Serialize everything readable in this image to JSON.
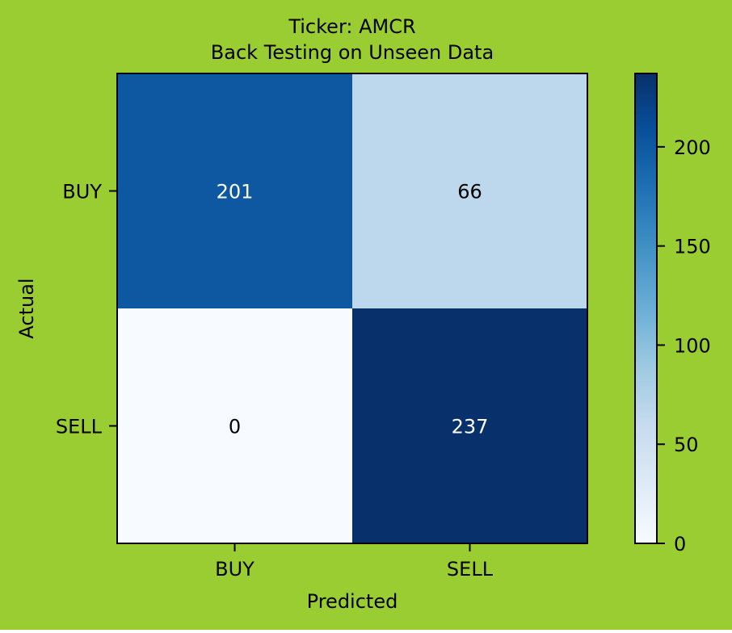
{
  "background_color": "#9ACD32",
  "chart_data": {
    "type": "heatmap",
    "title": "Ticker: AMCR",
    "subtitle": "Back Testing on Unseen Data",
    "xlabel": "Predicted",
    "ylabel": "Actual",
    "x_categories": [
      "BUY",
      "SELL"
    ],
    "y_categories": [
      "BUY",
      "SELL"
    ],
    "matrix": [
      [
        201,
        66
      ],
      [
        0,
        237
      ]
    ],
    "colormap": "Blues",
    "colorbar": {
      "range": [
        0,
        237
      ],
      "ticks": [
        0,
        50,
        100,
        150,
        200
      ],
      "tick_labels": [
        "0",
        "50",
        "100",
        "150",
        "200"
      ]
    },
    "grid": false,
    "legend": "none"
  }
}
